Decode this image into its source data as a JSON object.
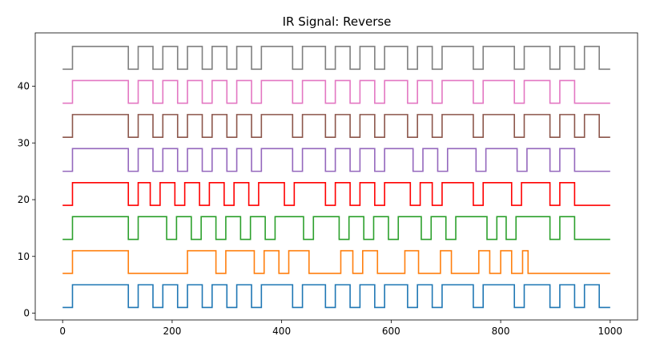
{
  "chart_data": {
    "type": "line",
    "title": "IR Signal: Reverse",
    "xlabel": "",
    "ylabel": "",
    "xlim": [
      -50,
      1050
    ],
    "ylim": [
      -1.2,
      49.4
    ],
    "xticks": [
      0,
      200,
      400,
      600,
      800,
      1000
    ],
    "yticks": [
      0,
      10,
      20,
      30,
      40
    ],
    "grid": false,
    "series": [
      {
        "color": "#1f77b4",
        "low": 1,
        "high": 5,
        "transitions": [
          0,
          18,
          120,
          138,
          165,
          183,
          210,
          228,
          255,
          273,
          300,
          318,
          345,
          363,
          420,
          438,
          480,
          498,
          525,
          543,
          570,
          588,
          630,
          648,
          675,
          693,
          750,
          768,
          825,
          843,
          890,
          908,
          935,
          953,
          980,
          1000
        ]
      },
      {
        "color": "#ff7f0e",
        "low": 7,
        "high": 11,
        "transitions": [
          0,
          18,
          120,
          228,
          280,
          298,
          350,
          368,
          395,
          413,
          450,
          508,
          530,
          548,
          575,
          625,
          650,
          690,
          710,
          760,
          780,
          800,
          820,
          840,
          850,
          1000
        ]
      },
      {
        "color": "#2ca02c",
        "low": 13,
        "high": 17,
        "transitions": [
          0,
          18,
          120,
          138,
          190,
          208,
          235,
          253,
          280,
          298,
          325,
          343,
          370,
          388,
          440,
          458,
          505,
          523,
          550,
          568,
          595,
          613,
          655,
          673,
          700,
          718,
          775,
          793,
          810,
          828,
          890,
          908,
          935,
          1000
        ]
      },
      {
        "color": "#ff0000",
        "low": 19,
        "high": 23,
        "transitions": [
          0,
          18,
          120,
          138,
          160,
          178,
          205,
          223,
          250,
          268,
          295,
          313,
          340,
          358,
          405,
          423,
          480,
          498,
          525,
          543,
          570,
          588,
          635,
          653,
          675,
          693,
          750,
          768,
          820,
          838,
          890,
          908,
          935,
          1000
        ]
      },
      {
        "color": "#9467bd",
        "low": 25,
        "high": 29,
        "transitions": [
          0,
          18,
          120,
          138,
          165,
          183,
          210,
          228,
          255,
          273,
          300,
          318,
          345,
          363,
          420,
          438,
          480,
          498,
          525,
          543,
          570,
          588,
          640,
          658,
          685,
          703,
          755,
          773,
          830,
          848,
          890,
          908,
          935,
          1000
        ]
      },
      {
        "color": "#8c564b",
        "low": 31,
        "high": 35,
        "transitions": [
          0,
          18,
          120,
          138,
          165,
          183,
          210,
          228,
          255,
          273,
          300,
          318,
          345,
          363,
          420,
          438,
          480,
          498,
          525,
          543,
          570,
          588,
          630,
          648,
          675,
          693,
          750,
          768,
          825,
          843,
          890,
          908,
          935,
          953,
          980,
          1000
        ]
      },
      {
        "color": "#e377c2",
        "low": 37,
        "high": 41,
        "transitions": [
          0,
          18,
          120,
          138,
          165,
          183,
          210,
          228,
          255,
          273,
          300,
          318,
          345,
          363,
          420,
          438,
          480,
          498,
          525,
          543,
          570,
          588,
          630,
          648,
          675,
          693,
          750,
          768,
          825,
          843,
          890,
          908,
          935,
          1000
        ]
      },
      {
        "color": "#7f7f7f",
        "low": 43,
        "high": 47,
        "transitions": [
          0,
          18,
          120,
          138,
          165,
          183,
          210,
          228,
          255,
          273,
          300,
          318,
          345,
          363,
          420,
          438,
          480,
          498,
          525,
          543,
          570,
          588,
          630,
          648,
          675,
          693,
          750,
          768,
          825,
          843,
          890,
          908,
          935,
          953,
          980,
          1000
        ]
      }
    ]
  }
}
